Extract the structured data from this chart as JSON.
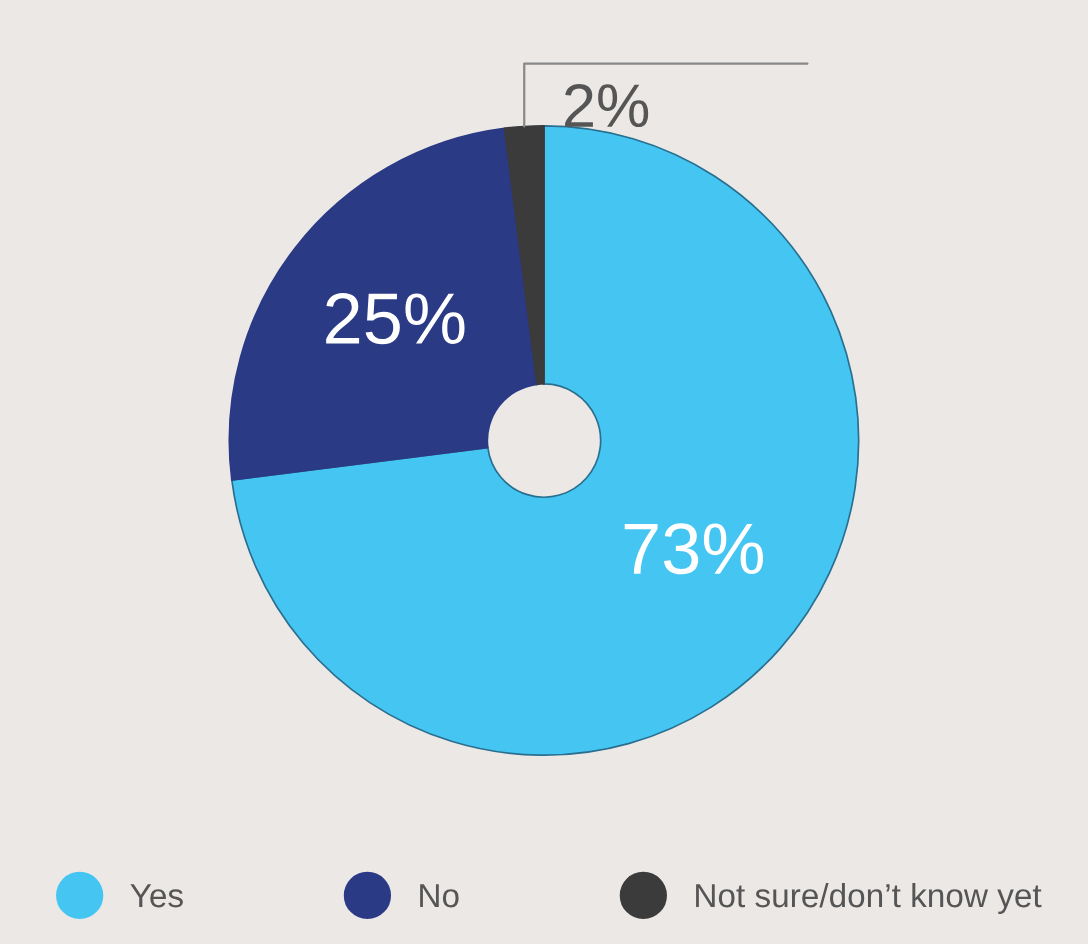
{
  "chart_data": {
    "type": "donut",
    "categories": [
      "Yes",
      "No",
      "Not sure/don’t know yet"
    ],
    "values": [
      73,
      25,
      2
    ],
    "colors": [
      "#45c6f2",
      "#2b3a85",
      "#3b3b3b"
    ],
    "value_labels": [
      "73%",
      "25%",
      "2%"
    ],
    "legend": "bottom"
  }
}
